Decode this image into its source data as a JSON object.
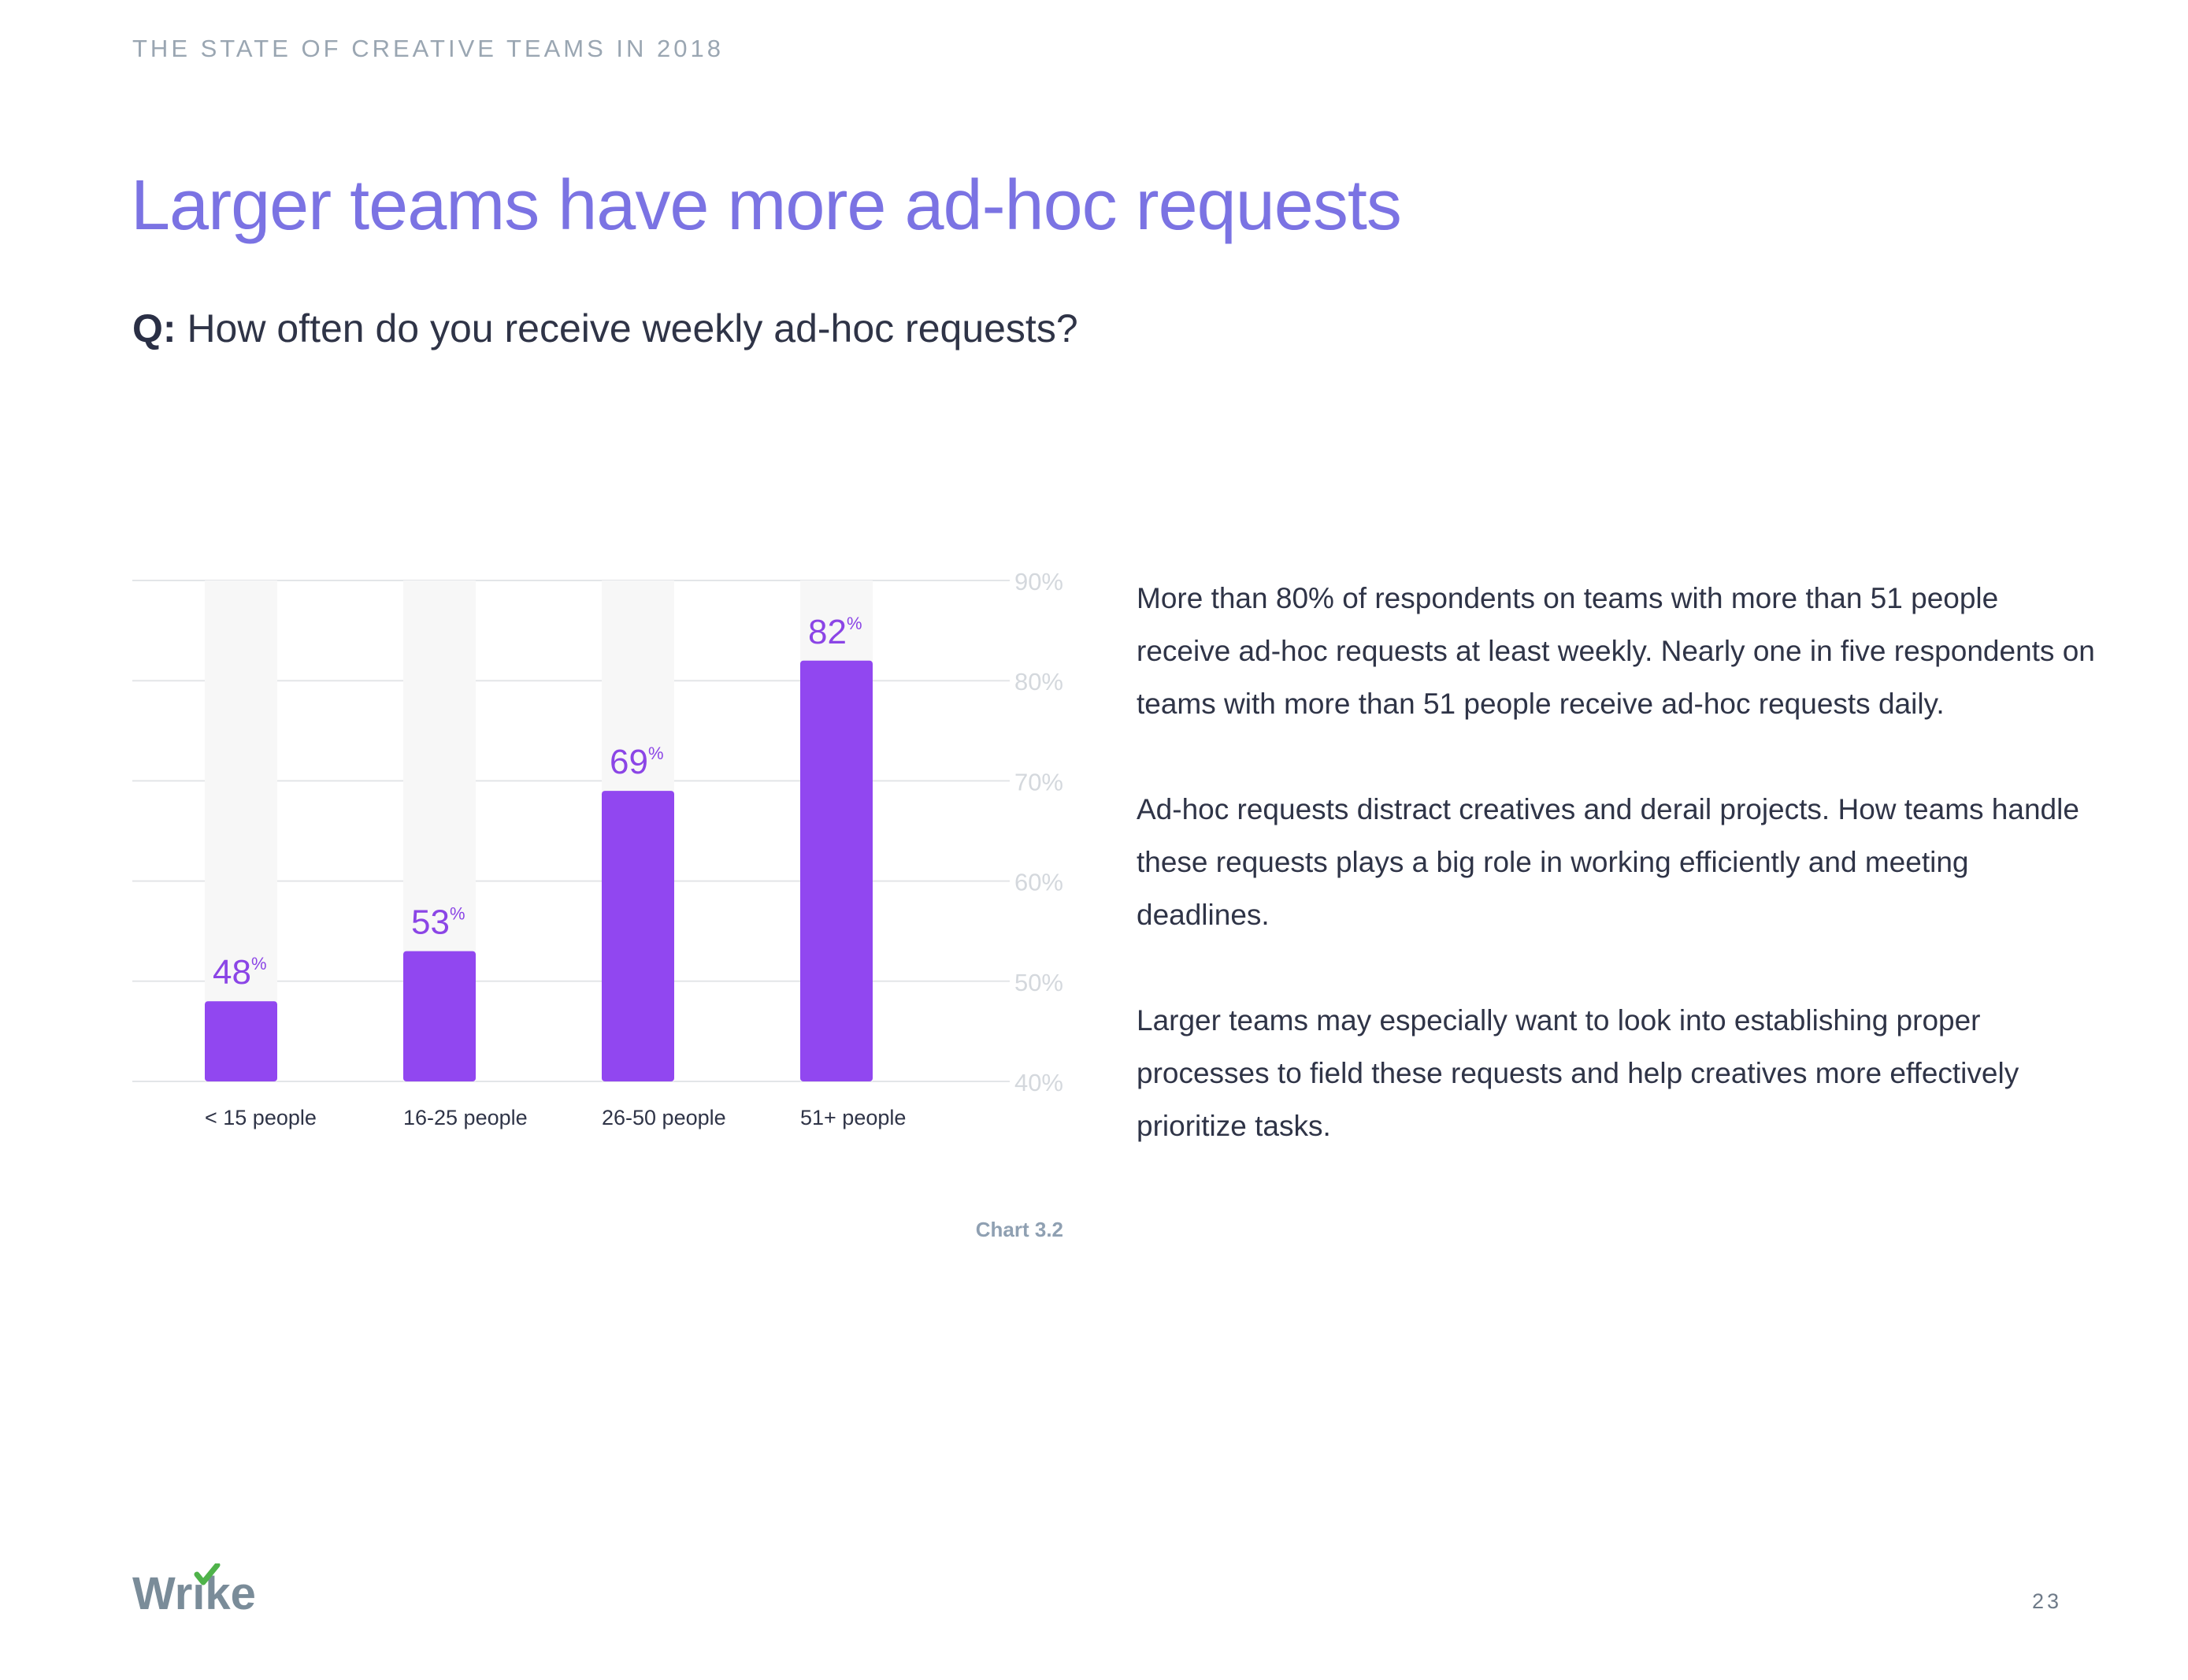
{
  "header": {
    "kicker": "THE STATE OF CREATIVE TEAMS IN 2018"
  },
  "title": "Larger teams have more ad-hoc requests",
  "question": {
    "prefix": "Q:",
    "text": "How often do you receive weekly ad-hoc requests?"
  },
  "chart_data": {
    "type": "bar",
    "categories": [
      "< 15 people",
      "16-25 people",
      "26-50 people",
      "51+ people"
    ],
    "values": [
      48,
      53,
      69,
      82
    ],
    "ylim": [
      40,
      90
    ],
    "yticks": [
      "40%",
      "50%",
      "60%",
      "70%",
      "80%",
      "90%"
    ],
    "value_suffix": "%",
    "grid": true,
    "y_axis_position": "right",
    "bar_color": "#9147f0",
    "label_color": "#8b45e6",
    "track_color": "#f7f7f7"
  },
  "caption": "Chart 3.2",
  "body": {
    "p1": "More than 80% of respondents on teams with more than 51 people receive ad-hoc requests at least weekly. Nearly one in five respondents on teams with more than 51 people receive ad-hoc requests daily.",
    "p2": "Ad-hoc requests distract creatives and derail projects. How teams handle these requests plays a big role in working efficiently and meeting deadlines.",
    "p3": "Larger teams may especially want to look into establishing proper processes to field these requests and help creatives more effectively prioritize tasks."
  },
  "logo": {
    "text": "Wrike",
    "accent": "#4fb34a",
    "color": "#7a8c99"
  },
  "page_number": "23"
}
